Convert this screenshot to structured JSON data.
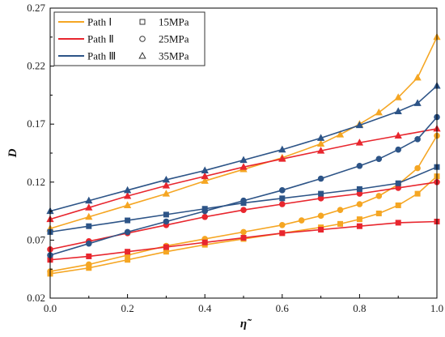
{
  "chart_data": {
    "type": "line",
    "xlabel": "η̃",
    "ylabel": "D",
    "xlim": [
      0.0,
      1.0
    ],
    "ylim": [
      0.02,
      0.27
    ],
    "xticks": [
      "0.0",
      "0.2",
      "0.4",
      "0.6",
      "0.8",
      "1.0"
    ],
    "yticks": [
      "0.02",
      "0.07",
      "0.12",
      "0.17",
      "0.22",
      "0.27"
    ],
    "grid": false,
    "legend_position": "top-left",
    "path_legend": [
      {
        "name": "Path Ⅰ",
        "color": "#F5A623"
      },
      {
        "name": "Path Ⅱ",
        "color": "#E8262E"
      },
      {
        "name": "Path Ⅲ",
        "color": "#2D5487"
      }
    ],
    "marker_legend": [
      {
        "name": "15MPa",
        "marker": "square"
      },
      {
        "name": "25MPa",
        "marker": "circle"
      },
      {
        "name": "35MPa",
        "marker": "triangle"
      }
    ],
    "series": [
      {
        "path": "Path Ⅰ",
        "pressure": "15MPa",
        "marker": "square",
        "color": "#F5A623",
        "x": [
          0.0,
          0.1,
          0.2,
          0.3,
          0.4,
          0.5,
          0.6,
          0.7,
          0.75,
          0.8,
          0.85,
          0.9,
          0.95,
          1.0
        ],
        "y": [
          0.041,
          0.046,
          0.053,
          0.06,
          0.066,
          0.071,
          0.076,
          0.081,
          0.084,
          0.088,
          0.093,
          0.1,
          0.11,
          0.125
        ]
      },
      {
        "path": "Path Ⅰ",
        "pressure": "25MPa",
        "marker": "circle",
        "color": "#F5A623",
        "x": [
          0.0,
          0.1,
          0.2,
          0.3,
          0.4,
          0.5,
          0.6,
          0.65,
          0.7,
          0.75,
          0.8,
          0.85,
          0.9,
          0.95,
          1.0
        ],
        "y": [
          0.043,
          0.049,
          0.057,
          0.065,
          0.071,
          0.077,
          0.083,
          0.087,
          0.091,
          0.096,
          0.101,
          0.108,
          0.118,
          0.132,
          0.16
        ]
      },
      {
        "path": "Path Ⅰ",
        "pressure": "35MPa",
        "marker": "triangle",
        "color": "#F5A623",
        "x": [
          0.0,
          0.1,
          0.2,
          0.3,
          0.4,
          0.5,
          0.6,
          0.7,
          0.75,
          0.8,
          0.85,
          0.9,
          0.95,
          1.0
        ],
        "y": [
          0.08,
          0.09,
          0.1,
          0.11,
          0.121,
          0.131,
          0.141,
          0.153,
          0.161,
          0.17,
          0.18,
          0.193,
          0.21,
          0.245
        ]
      },
      {
        "path": "Path Ⅱ",
        "pressure": "15MPa",
        "marker": "square",
        "color": "#E8262E",
        "x": [
          0.0,
          0.1,
          0.2,
          0.3,
          0.4,
          0.5,
          0.6,
          0.7,
          0.8,
          0.9,
          1.0
        ],
        "y": [
          0.053,
          0.056,
          0.06,
          0.064,
          0.068,
          0.072,
          0.076,
          0.079,
          0.082,
          0.085,
          0.086
        ]
      },
      {
        "path": "Path Ⅱ",
        "pressure": "25MPa",
        "marker": "circle",
        "color": "#E8262E",
        "x": [
          0.0,
          0.1,
          0.2,
          0.3,
          0.4,
          0.5,
          0.6,
          0.7,
          0.8,
          0.9,
          1.0
        ],
        "y": [
          0.062,
          0.069,
          0.076,
          0.083,
          0.09,
          0.096,
          0.101,
          0.106,
          0.11,
          0.115,
          0.12
        ]
      },
      {
        "path": "Path Ⅱ",
        "pressure": "35MPa",
        "marker": "triangle",
        "color": "#E8262E",
        "x": [
          0.0,
          0.1,
          0.2,
          0.3,
          0.4,
          0.5,
          0.6,
          0.7,
          0.8,
          0.9,
          1.0
        ],
        "y": [
          0.088,
          0.098,
          0.108,
          0.117,
          0.125,
          0.133,
          0.14,
          0.147,
          0.154,
          0.16,
          0.166
        ]
      },
      {
        "path": "Path Ⅲ",
        "pressure": "15MPa",
        "marker": "square",
        "color": "#2D5487",
        "x": [
          0.0,
          0.1,
          0.2,
          0.3,
          0.4,
          0.5,
          0.6,
          0.7,
          0.8,
          0.9,
          1.0
        ],
        "y": [
          0.077,
          0.082,
          0.087,
          0.092,
          0.097,
          0.102,
          0.106,
          0.11,
          0.114,
          0.119,
          0.133
        ]
      },
      {
        "path": "Path Ⅲ",
        "pressure": "25MPa",
        "marker": "circle",
        "color": "#2D5487",
        "x": [
          0.0,
          0.1,
          0.2,
          0.3,
          0.4,
          0.5,
          0.6,
          0.7,
          0.8,
          0.85,
          0.9,
          0.95,
          1.0
        ],
        "y": [
          0.057,
          0.067,
          0.077,
          0.086,
          0.095,
          0.104,
          0.113,
          0.123,
          0.134,
          0.14,
          0.148,
          0.157,
          0.176
        ]
      },
      {
        "path": "Path Ⅲ",
        "pressure": "35MPa",
        "marker": "triangle",
        "color": "#2D5487",
        "x": [
          0.0,
          0.1,
          0.2,
          0.3,
          0.4,
          0.5,
          0.6,
          0.7,
          0.8,
          0.9,
          0.95,
          1.0
        ],
        "y": [
          0.095,
          0.104,
          0.113,
          0.122,
          0.13,
          0.139,
          0.148,
          0.158,
          0.169,
          0.181,
          0.188,
          0.203
        ]
      }
    ]
  }
}
